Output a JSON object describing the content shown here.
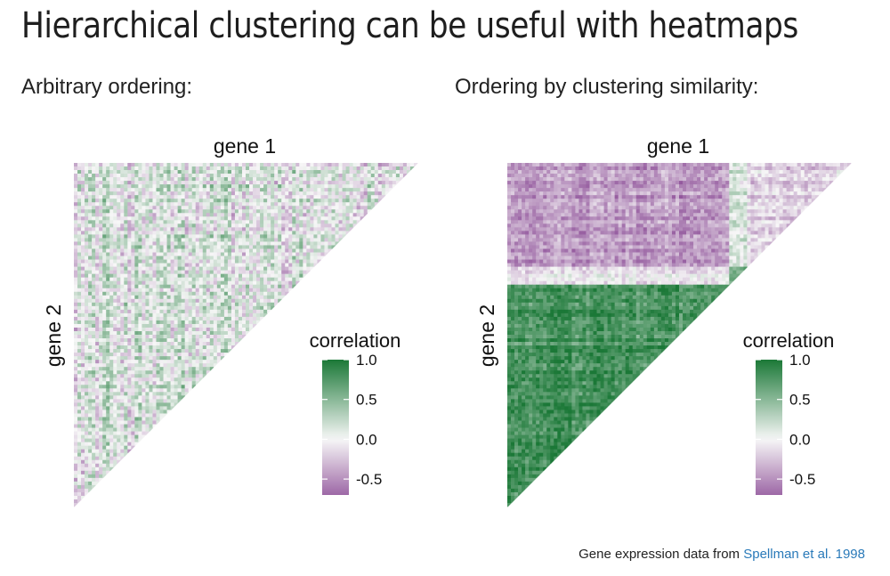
{
  "page": {
    "title": "Hierarchical clustering can be useful with heatmaps",
    "caption_prefix": "Gene expression data from ",
    "caption_link": "Spellman et al. 1998"
  },
  "colors": {
    "low": "#762a83",
    "mid": "#f7f7f7",
    "high": "#1b7837",
    "link": "#2a7ab9"
  },
  "chart_data": [
    {
      "type": "heatmap",
      "subtitle": "Arbitrary ordering:",
      "ordering": "arbitrary",
      "xlabel": "gene 1",
      "ylabel": "gene 2",
      "shape": "upper-triangular correlation matrix",
      "value_range": [
        -0.7,
        1.0
      ],
      "legend": {
        "title": "correlation",
        "ticks": [
          "1.0",
          "0.5",
          "0.0",
          "-0.5"
        ],
        "tick_values": [
          1.0,
          0.5,
          0.0,
          -0.5
        ],
        "placement": "right"
      }
    },
    {
      "type": "heatmap",
      "subtitle": "Ordering by clustering similarity:",
      "ordering": "clustered",
      "xlabel": "gene 1",
      "ylabel": "gene 2",
      "shape": "upper-triangular correlation matrix",
      "value_range": [
        -0.7,
        1.0
      ],
      "cluster_fractions": [
        0.3,
        0.05,
        0.65
      ],
      "legend": {
        "title": "correlation",
        "ticks": [
          "1.0",
          "0.5",
          "0.0",
          "-0.5"
        ],
        "tick_values": [
          1.0,
          0.5,
          0.0,
          -0.5
        ],
        "placement": "right"
      }
    }
  ]
}
